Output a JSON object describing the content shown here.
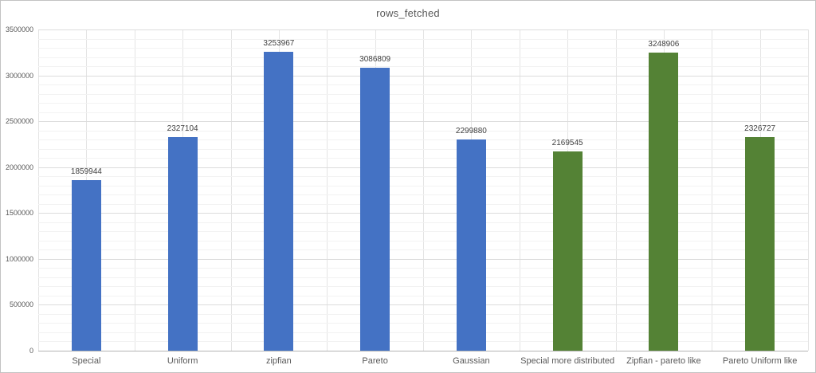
{
  "chart_data": {
    "type": "bar",
    "title": "rows_fetched",
    "categories": [
      "Special",
      "Uniform",
      "zipfian",
      "Pareto",
      "Gaussian",
      "Special more distributed",
      "Zipfian - pareto like",
      "Pareto Uniform like"
    ],
    "values": [
      1859944,
      2327104,
      3253967,
      3086809,
      2299880,
      2169545,
      3248906,
      2326727
    ],
    "data_labels": [
      "1859944",
      "2327104",
      "3253967",
      "3086809",
      "2299880",
      "2169545",
      "3248906",
      "2326727"
    ],
    "bar_colors": [
      "#4472C4",
      "#4472C4",
      "#4472C4",
      "#4472C4",
      "#4472C4",
      "#548235",
      "#548235",
      "#548235"
    ],
    "series_colors": {
      "blue": "#4472C4",
      "green": "#548235"
    },
    "xlabel": "",
    "ylabel": "",
    "ylim": [
      0,
      3500000
    ],
    "y_major_step": 500000,
    "y_minor_step": 100000,
    "y_tick_labels": [
      "0",
      "500000",
      "1000000",
      "1500000",
      "2000000",
      "2500000",
      "3000000",
      "3500000"
    ],
    "grid": "major+minor horizontal, vertical category separators",
    "legend_position": "none"
  }
}
